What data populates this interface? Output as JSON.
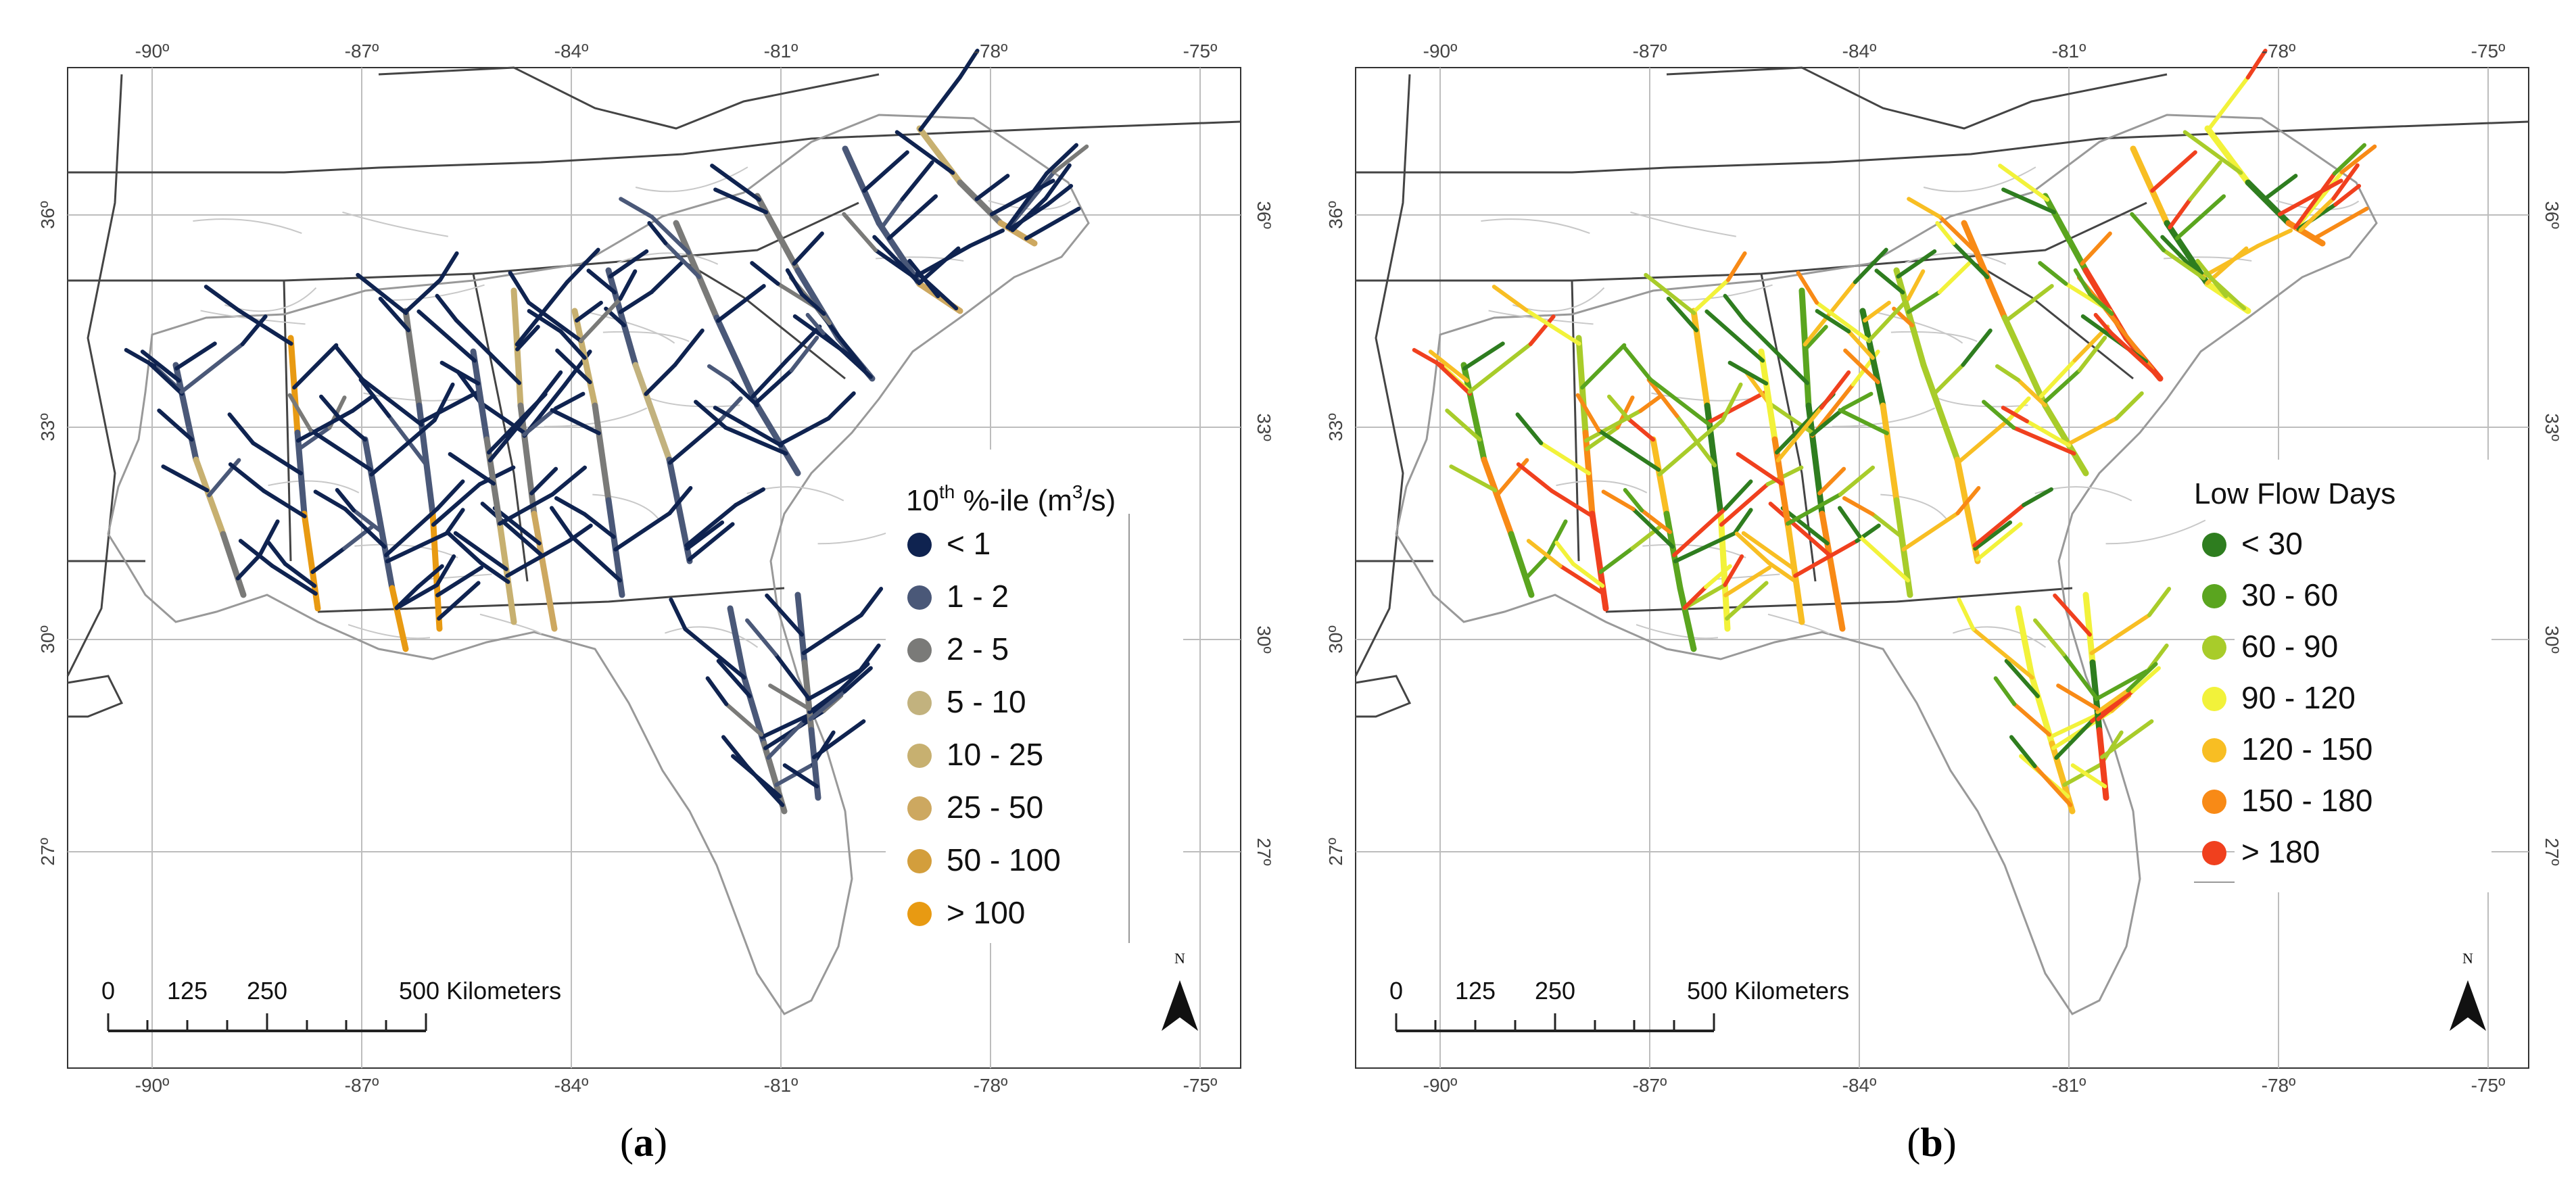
{
  "figure": {
    "panels": [
      {
        "id": "a",
        "caption_letter": "a",
        "top_lon_labels": [
          "-90º",
          "-87º",
          "-84º",
          "-81º",
          "-78º",
          "-75º"
        ],
        "bottom_lon_labels": [
          "-90º",
          "-87º",
          "-84º",
          "-81º",
          "-78º",
          "-75º"
        ],
        "lat_labels": [
          "36º",
          "33º",
          "30º",
          "27º"
        ],
        "legend": {
          "title_main": "10",
          "title_sup": "th",
          "title_rest": " %-ile (m",
          "title_sup2": "3",
          "title_end": "/s)",
          "items": [
            {
              "label": "< 1",
              "color": "#0f2350"
            },
            {
              "label": "1 - 2",
              "color": "#4a5878"
            },
            {
              "label": "2 - 5",
              "color": "#7a7a78"
            },
            {
              "label": "5 - 10",
              "color": "#c2b27e"
            },
            {
              "label": "10 - 25",
              "color": "#c7b070"
            },
            {
              "label": "25 - 50",
              "color": "#cda860"
            },
            {
              "label": "50 - 100",
              "color": "#d39e3c"
            },
            {
              "label": "> 100",
              "color": "#e89a12"
            }
          ]
        },
        "scale": {
          "ticks": [
            "0",
            "125",
            "250",
            "500 Kilometers"
          ]
        },
        "north": "N"
      },
      {
        "id": "b",
        "caption_letter": "b",
        "top_lon_labels": [
          "-90º",
          "-87º",
          "-84º",
          "-81º",
          "-78º",
          "-75º"
        ],
        "bottom_lon_labels": [
          "-90º",
          "-87º",
          "-84º",
          "-81º",
          "-78º",
          "-75º"
        ],
        "lat_labels": [
          "36º",
          "33º",
          "30º",
          "27º"
        ],
        "legend": {
          "title": "Low Flow Days",
          "items": [
            {
              "label": "< 30",
              "color": "#2e7d1f"
            },
            {
              "label": "30 - 60",
              "color": "#5aa51f"
            },
            {
              "label": "60 - 90",
              "color": "#a8cc2a"
            },
            {
              "label": "90 - 120",
              "color": "#f2f23a"
            },
            {
              "label": "120 - 150",
              "color": "#f8be23"
            },
            {
              "label": "150 - 180",
              "color": "#f88a16"
            },
            {
              "label": "> 180",
              "color": "#f0401e"
            }
          ]
        },
        "scale": {
          "ticks": [
            "0",
            "125",
            "250",
            "500 Kilometers"
          ]
        },
        "north": "N"
      }
    ]
  }
}
